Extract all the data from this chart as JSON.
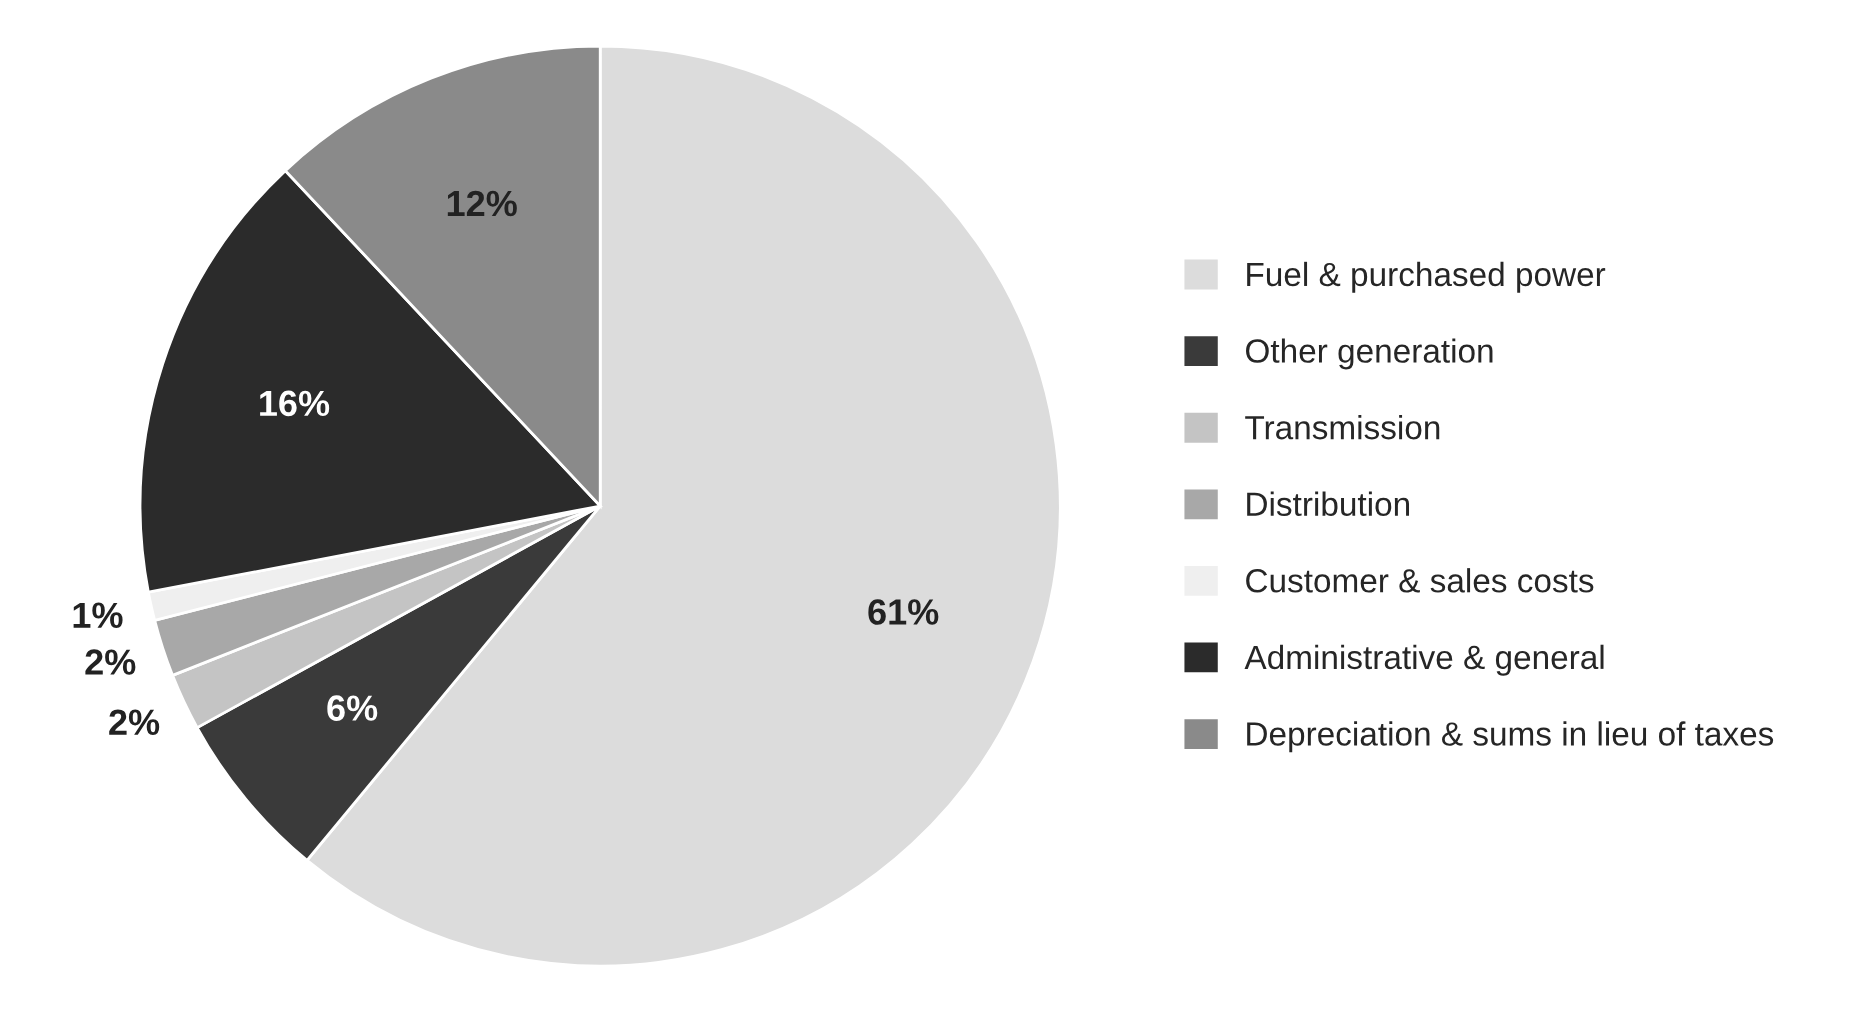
{
  "chart_data": {
    "type": "pie",
    "categories": [
      "Fuel & purchased power",
      "Other generation",
      "Transmission",
      "Distribution",
      "Customer & sales costs",
      "Administrative & general",
      "Depreciation & sums in lieu of taxes"
    ],
    "values": [
      61,
      6,
      2,
      2,
      1,
      16,
      12
    ],
    "colors": [
      "#dcdcdc",
      "#3a3a3a",
      "#c4c4c4",
      "#a8a8a8",
      "#efefef",
      "#2b2b2b",
      "#8a8a8a"
    ],
    "value_labels": [
      "61%",
      "6%",
      "2%",
      "2%",
      "1%",
      "16%",
      "12%"
    ],
    "legend": "right"
  }
}
